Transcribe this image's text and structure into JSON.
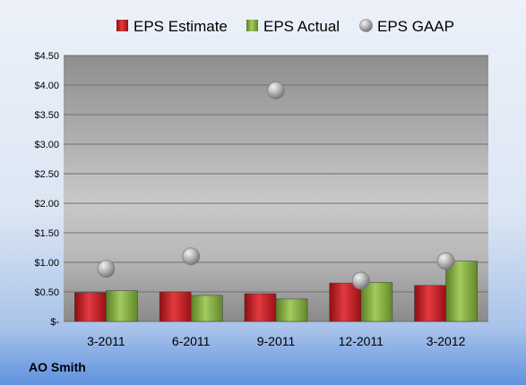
{
  "chart_data": {
    "type": "bar",
    "categories": [
      "3-2011",
      "6-2011",
      "9-2011",
      "12-2011",
      "3-2012"
    ],
    "series": [
      {
        "name": "EPS Estimate",
        "kind": "bar",
        "color": "#C0141B",
        "values": [
          0.49,
          0.5,
          0.47,
          0.65,
          0.61
        ]
      },
      {
        "name": "EPS Actual",
        "kind": "bar",
        "color": "#7BA43A",
        "values": [
          0.52,
          0.44,
          0.38,
          0.66,
          1.02
        ]
      },
      {
        "name": "EPS GAAP",
        "kind": "scatter",
        "color": "#A6A6A6",
        "values": [
          0.89,
          1.1,
          3.91,
          0.69,
          1.02
        ]
      }
    ],
    "ylim": [
      0,
      4.5
    ],
    "yticks": [
      0,
      0.5,
      1.0,
      1.5,
      2.0,
      2.5,
      3.0,
      3.5,
      4.0,
      4.5
    ],
    "ytick_labels": [
      "$-",
      "$0.50",
      "$1.00",
      "$1.50",
      "$2.00",
      "$2.50",
      "$3.00",
      "$3.50",
      "$4.00",
      "$4.50"
    ],
    "grid": true,
    "legend": "top"
  },
  "company_label": "AO Smith"
}
